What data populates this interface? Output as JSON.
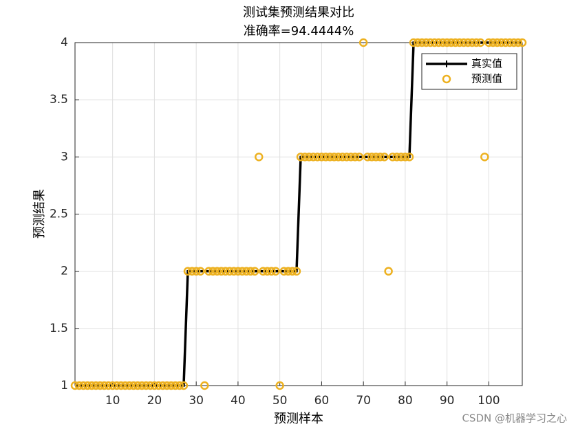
{
  "chart_data": {
    "type": "line",
    "title": "测试集预测结果对比",
    "subtitle": "准确率=94.4444%",
    "xlabel": "预测样本",
    "ylabel": "预测结果",
    "x": [
      1,
      2,
      3,
      4,
      5,
      6,
      7,
      8,
      9,
      10,
      11,
      12,
      13,
      14,
      15,
      16,
      17,
      18,
      19,
      20,
      21,
      22,
      23,
      24,
      25,
      26,
      27,
      28,
      29,
      30,
      31,
      32,
      33,
      34,
      35,
      36,
      37,
      38,
      39,
      40,
      41,
      42,
      43,
      44,
      45,
      46,
      47,
      48,
      49,
      50,
      51,
      52,
      53,
      54,
      55,
      56,
      57,
      58,
      59,
      60,
      61,
      62,
      63,
      64,
      65,
      66,
      67,
      68,
      69,
      70,
      71,
      72,
      73,
      74,
      75,
      76,
      77,
      78,
      79,
      80,
      81,
      82,
      83,
      84,
      85,
      86,
      87,
      88,
      89,
      90,
      91,
      92,
      93,
      94,
      95,
      96,
      97,
      98,
      99,
      100,
      101,
      102,
      103,
      104,
      105,
      106,
      107,
      108
    ],
    "series": [
      {
        "name": "真实值",
        "color": "#000000",
        "values": [
          1,
          1,
          1,
          1,
          1,
          1,
          1,
          1,
          1,
          1,
          1,
          1,
          1,
          1,
          1,
          1,
          1,
          1,
          1,
          1,
          1,
          1,
          1,
          1,
          1,
          1,
          1,
          2,
          2,
          2,
          2,
          2,
          2,
          2,
          2,
          2,
          2,
          2,
          2,
          2,
          2,
          2,
          2,
          2,
          2,
          2,
          2,
          2,
          2,
          2,
          2,
          2,
          2,
          2,
          3,
          3,
          3,
          3,
          3,
          3,
          3,
          3,
          3,
          3,
          3,
          3,
          3,
          3,
          3,
          3,
          3,
          3,
          3,
          3,
          3,
          3,
          3,
          3,
          3,
          3,
          3,
          4,
          4,
          4,
          4,
          4,
          4,
          4,
          4,
          4,
          4,
          4,
          4,
          4,
          4,
          4,
          4,
          4,
          4,
          4,
          4,
          4,
          4,
          4,
          4,
          4,
          4,
          4
        ]
      },
      {
        "name": "预测值",
        "color": "#EDB120",
        "values": [
          1,
          1,
          1,
          1,
          1,
          1,
          1,
          1,
          1,
          1,
          1,
          1,
          1,
          1,
          1,
          1,
          1,
          1,
          1,
          1,
          1,
          1,
          1,
          1,
          1,
          1,
          1,
          2,
          2,
          2,
          2,
          1,
          2,
          2,
          2,
          2,
          2,
          2,
          2,
          2,
          2,
          2,
          2,
          2,
          3,
          2,
          2,
          2,
          2,
          1,
          2,
          2,
          2,
          2,
          3,
          3,
          3,
          3,
          3,
          3,
          3,
          3,
          3,
          3,
          3,
          3,
          3,
          3,
          3,
          4,
          3,
          3,
          3,
          3,
          3,
          2,
          3,
          3,
          3,
          3,
          3,
          4,
          4,
          4,
          4,
          4,
          4,
          4,
          4,
          4,
          4,
          4,
          4,
          4,
          4,
          4,
          4,
          4,
          3,
          4,
          4,
          4,
          4,
          4,
          4,
          4,
          4,
          4
        ]
      }
    ],
    "xlim": [
      1,
      108
    ],
    "xticks": [
      10,
      20,
      30,
      40,
      50,
      60,
      70,
      80,
      90,
      100
    ],
    "ylim": [
      1,
      4
    ],
    "yticks": [
      1,
      1.5,
      2,
      2.5,
      3,
      3.5,
      4
    ],
    "grid": true,
    "legend": "northeast",
    "watermark": "CSDN @机器学习之心"
  }
}
